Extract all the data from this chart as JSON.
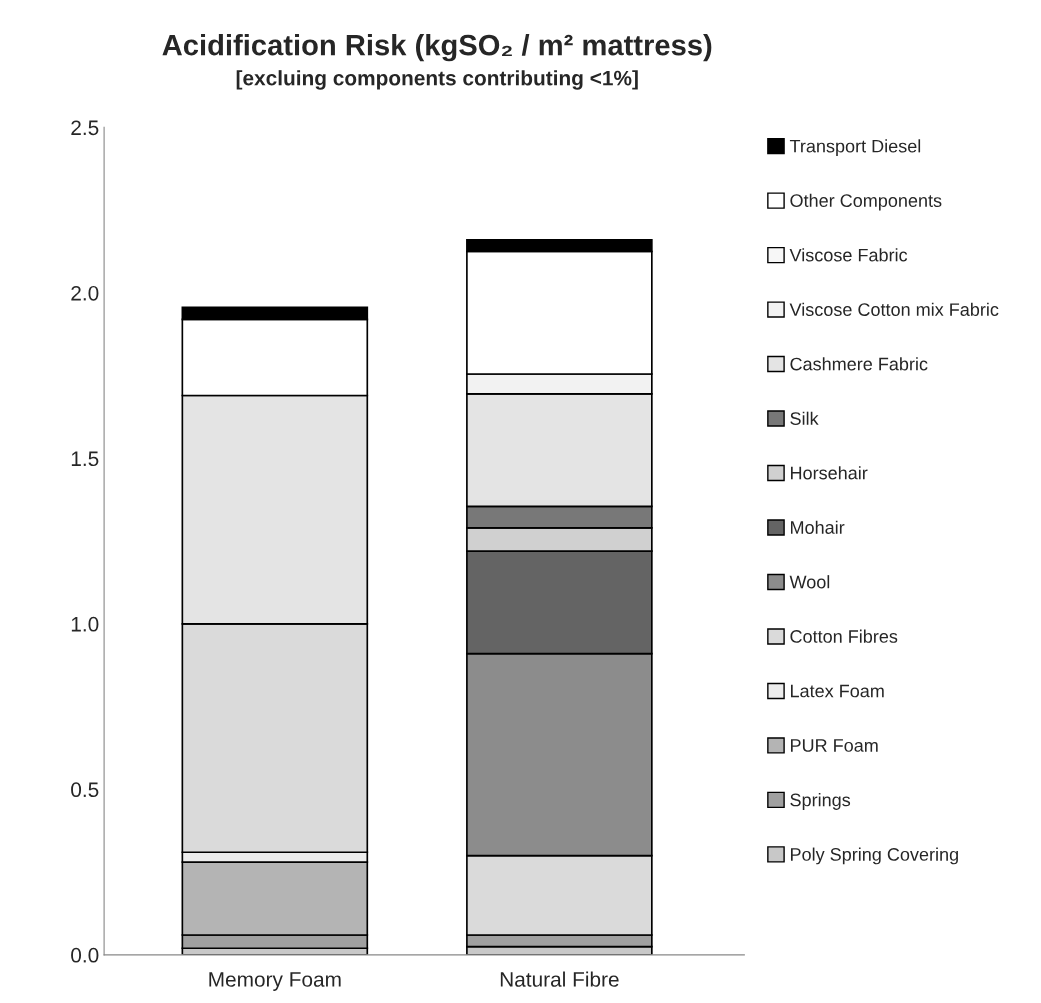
{
  "chart_data": {
    "type": "bar",
    "stacked": true,
    "title": "Acidification Risk (kgSO₂ / m² mattress)",
    "subtitle": "[excluing components contributing <1%]",
    "categories": [
      "Memory Foam",
      "Natural Fibre"
    ],
    "series": [
      {
        "name": "Poly Spring Covering",
        "color": "#c8c8c8",
        "values": [
          0.02,
          0.025
        ]
      },
      {
        "name": "Springs",
        "color": "#a0a0a0",
        "values": [
          0.04,
          0.035
        ]
      },
      {
        "name": "PUR Foam",
        "color": "#b4b4b4",
        "values": [
          0.22,
          null
        ]
      },
      {
        "name": "Latex Foam",
        "color": "#ececec",
        "values": [
          0.03,
          null
        ]
      },
      {
        "name": "Cotton Fibres",
        "color": "#dadada",
        "values": [
          0.69,
          0.24
        ]
      },
      {
        "name": "Wool",
        "color": "#8c8c8c",
        "values": [
          null,
          0.61
        ]
      },
      {
        "name": "Mohair",
        "color": "#646464",
        "values": [
          null,
          0.31
        ]
      },
      {
        "name": "Horsehair",
        "color": "#d0d0d0",
        "values": [
          null,
          0.07
        ]
      },
      {
        "name": "Silk",
        "color": "#787878",
        "values": [
          null,
          0.065
        ]
      },
      {
        "name": "Cashmere Fabric",
        "color": "#e4e4e4",
        "values": [
          0.69,
          0.34
        ]
      },
      {
        "name": "Viscose Cotton mix Fabric",
        "color": "#f2f2f2",
        "values": [
          null,
          0.06
        ]
      },
      {
        "name": "Viscose Fabric",
        "color": "#f7f7f7",
        "values": [
          null,
          null
        ]
      },
      {
        "name": "Other Components",
        "color": "#ffffff",
        "values": [
          0.23,
          0.37
        ]
      },
      {
        "name": "Transport Diesel",
        "color": "#000000",
        "values": [
          0.036,
          0.035
        ]
      }
    ],
    "ylim": [
      0,
      2.5
    ],
    "yticks": [
      {
        "value": 0,
        "label": "0.0"
      },
      {
        "value": 0.5,
        "label": "0.5"
      },
      {
        "value": 1,
        "label": "1.0"
      },
      {
        "value": 1.5,
        "label": "1.5"
      },
      {
        "value": 2,
        "label": "2.0"
      },
      {
        "value": 2.5,
        "label": "2.5"
      }
    ],
    "grid": false,
    "legend": "right"
  }
}
